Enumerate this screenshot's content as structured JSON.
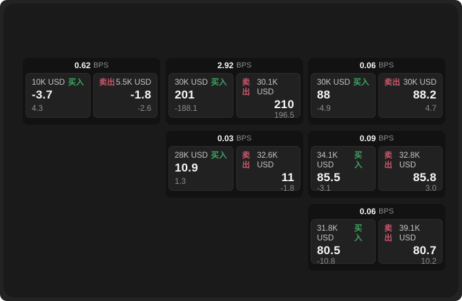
{
  "colors": {
    "bg-body": "#ffffff",
    "bg-outer": "#232323",
    "bg-panel": "#1a1a1a",
    "bg-card": "#121212",
    "bg-subpanel": "#212121",
    "border-subpanel": "#2c2c2c",
    "text-bright": "#f5f5f5",
    "text-label": "#c4c4c4",
    "text-dim": "#8d8d8d",
    "buy-green": "#3fa463",
    "sell-red": "#c8566b"
  },
  "labels": {
    "bps_unit": "BPS",
    "buy": "买入",
    "sell": "卖出"
  },
  "cards": [
    {
      "bps": "0.62",
      "buy": {
        "amount": "10K USD",
        "value": "-3.7",
        "delta": "4.3"
      },
      "sell": {
        "amount": "5.5K USD",
        "value": "-1.8",
        "delta": "-2.6"
      }
    },
    {
      "bps": "2.92",
      "buy": {
        "amount": "30K USD",
        "value": "201",
        "delta": "-188.1"
      },
      "sell": {
        "amount": "30.1K USD",
        "value": "210",
        "delta": "196.5"
      }
    },
    {
      "bps": "0.06",
      "buy": {
        "amount": "30K USD",
        "value": "88",
        "delta": "-4.9"
      },
      "sell": {
        "amount": "30K USD",
        "value": "88.2",
        "delta": "4.7"
      }
    },
    {
      "bps": "0.03",
      "buy": {
        "amount": "28K USD",
        "value": "10.9",
        "delta": "1.3"
      },
      "sell": {
        "amount": "32.6K USD",
        "value": "11",
        "delta": "-1.8"
      }
    },
    {
      "bps": "0.09",
      "buy": {
        "amount": "34.1K USD",
        "value": "85.5",
        "delta": "-3.1"
      },
      "sell": {
        "amount": "32.8K USD",
        "value": "85.8",
        "delta": "3.0"
      }
    },
    {
      "bps": "0.06",
      "buy": {
        "amount": "31.8K USD",
        "value": "80.5",
        "delta": "-10.8"
      },
      "sell": {
        "amount": "39.1K USD",
        "value": "80.7",
        "delta": "10.2"
      }
    }
  ]
}
